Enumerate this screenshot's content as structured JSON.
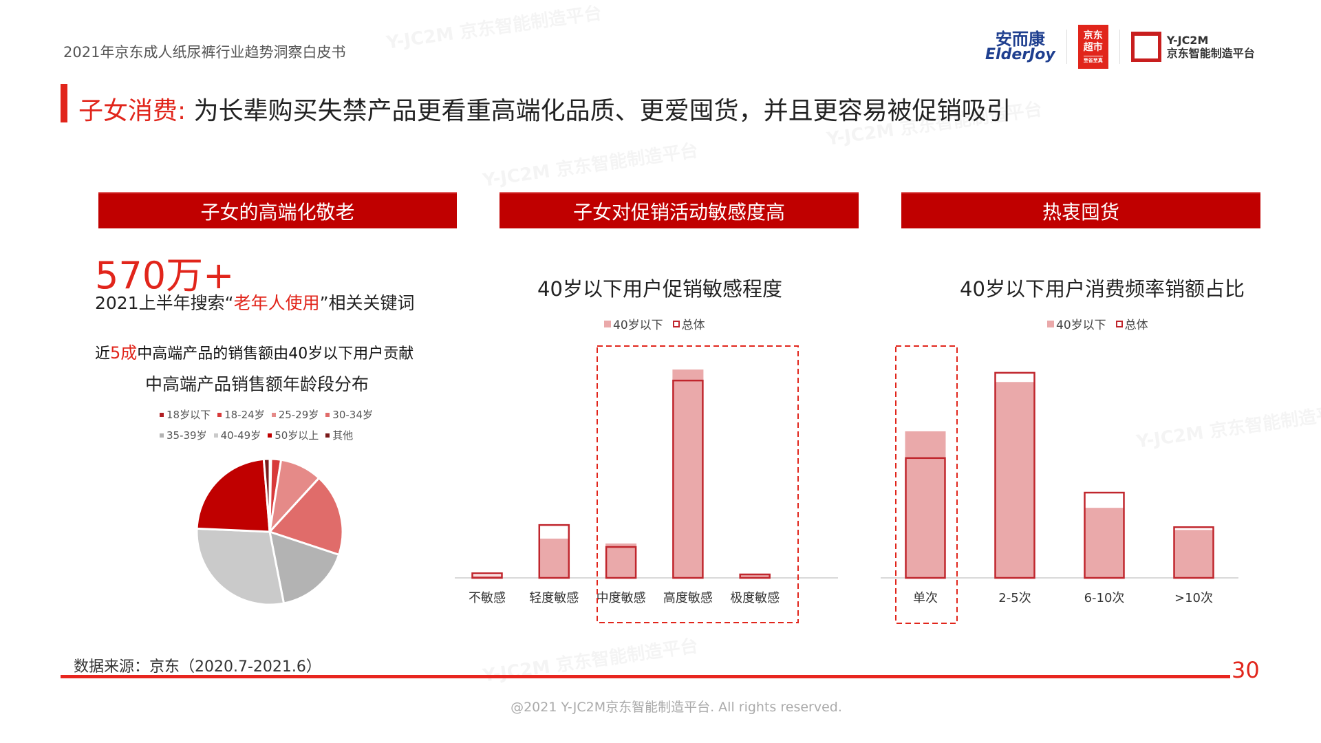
{
  "header": {
    "doc_title": "2021年京东成人纸尿裤行业趋势洞察白皮书",
    "logos": {
      "elderjoy_cn": "安而康",
      "elderjoy_en": "ElderJoy",
      "jd_super_1": "京东",
      "jd_super_2": "超市",
      "jd_super_slogan": "至省至真",
      "yjc2m_en": "Y-JC2M",
      "yjc2m_cn": "京东智能制造平台"
    }
  },
  "title": {
    "highlight": "子女消费:",
    "text": " 为长辈购买失禁产品更看重高端化品质、更爱囤货，并且更容易被促销吸引"
  },
  "sections": [
    {
      "label": "子女的高端化敬老"
    },
    {
      "label": "子女对促销活动敏感度高"
    },
    {
      "label": "热衷囤货"
    }
  ],
  "left": {
    "big_number": "570万+",
    "kw_prefix": "2021上半年搜索“",
    "kw_highlight": "老年人使用",
    "kw_suffix": "”相关关键词",
    "near_prefix": "近",
    "near_highlight": "5成",
    "near_suffix": "中高端产品的销售额由40岁以下用户贡献"
  },
  "colors": {
    "brand_red": "#e1251b",
    "header_red": "#c00000",
    "bar_fill": "#eaa9aa",
    "bar_outline": "#c0262d"
  },
  "chart_data": [
    {
      "type": "pie",
      "title": "中高端产品销售额年龄段分布",
      "categories": [
        "18岁以下",
        "18-24岁",
        "25-29岁",
        "30-34岁",
        "35-39岁",
        "40-49岁",
        "50岁以上",
        "其他"
      ],
      "values": [
        0.3,
        2.2,
        9.3,
        18.3,
        16.8,
        28.8,
        23.0,
        1.3
      ],
      "colors": [
        "#b01e23",
        "#d83a3a",
        "#e58a88",
        "#e06c6a",
        "#b3b3b3",
        "#cacaca",
        "#c00000",
        "#7a1a1a"
      ],
      "legend": "top"
    },
    {
      "type": "bar",
      "title": "40岁以下用户促销敏感程度",
      "categories": [
        "不敏感",
        "轻度敏感",
        "中度敏感",
        "高度敏感",
        "极度敏感"
      ],
      "series": [
        {
          "name": "40岁以下",
          "values": [
            0.8,
            13.6,
            11.9,
            72.1,
            1.2
          ]
        },
        {
          "name": "总体",
          "values": [
            1.6,
            18.3,
            10.7,
            68.3,
            1.2
          ]
        }
      ],
      "highlighted": [
        "中度敏感",
        "高度敏感",
        "极度敏感"
      ],
      "legend": "top"
    },
    {
      "type": "bar",
      "title": "40岁以下用户消费频率销额占比",
      "categories": [
        "单次",
        "2-5次",
        "6-10次",
        ">10次"
      ],
      "series": [
        {
          "name": "40岁以下",
          "values": [
            31.8,
            42.5,
            15.2,
            10.4
          ]
        },
        {
          "name": "总体",
          "values": [
            26.0,
            44.5,
            18.5,
            11.0
          ]
        }
      ],
      "highlighted": [
        "单次"
      ],
      "legend": "top"
    }
  ],
  "footer": {
    "source": "数据来源：京东（2020.7-2021.6）",
    "page": "30",
    "copyright": "@2021 Y-JC2M京东智能制造平台. All rights reserved."
  },
  "watermark": "Y-JC2M 京东智能制造平台"
}
